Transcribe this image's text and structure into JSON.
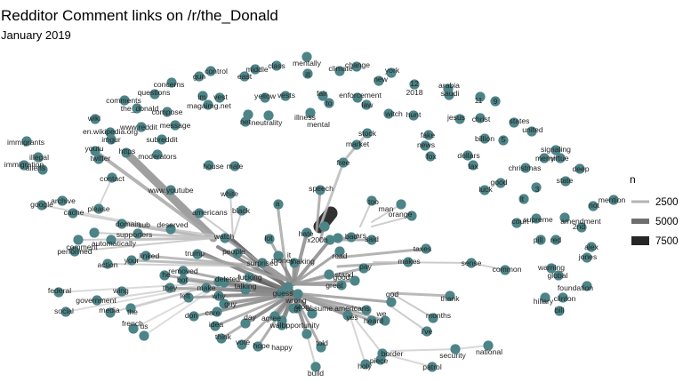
{
  "chart_data": {
    "type": "network",
    "title": "Redditor Comment links on /r/the_Donald",
    "subtitle": "January 2019",
    "legend": {
      "title": "n",
      "position": "right",
      "entries": [
        {
          "label": "2500",
          "value": 2500,
          "color": "#b3b3b3"
        },
        {
          "label": "5000",
          "value": 5000,
          "color": "#6e6e6e"
        },
        {
          "label": "7500",
          "value": 7500,
          "color": "#262626"
        }
      ]
    },
    "node_color": "#4d8487",
    "nodes": [
      "control",
      "middle",
      "class",
      "mentally",
      "climate",
      "change",
      "york",
      "concerns",
      "gun",
      "east",
      "ill",
      "new",
      "2018",
      "arabia",
      "questions",
      "im",
      "vest",
      "yellow",
      "vests",
      "fair",
      "enforcement",
      "saudi",
      "comments",
      "magaimg.net",
      "to",
      "law",
      "11",
      "9",
      "the_donald",
      "compose",
      "neutrality",
      "illness",
      "mental",
      "witch",
      "hunt",
      "jesus",
      "christ",
      "states",
      "wiki",
      "en.wikipedia.org",
      "www.reddit",
      "message",
      "net",
      "united",
      "imgur",
      "subreddit",
      "stock",
      "fake",
      "billion",
      "5",
      "immigrants",
      "youtu",
      "https",
      "moderators",
      "market",
      "news",
      "fox",
      "signaling",
      "illegal",
      "twitter",
      "house",
      "male",
      "dollars",
      "merry",
      "virtue",
      "immigration",
      "aliens",
      "free",
      "tax",
      "christmas",
      "deep",
      "contact",
      "state",
      "speech",
      "good",
      "www.youtube",
      "white",
      "luck",
      "lt",
      "3",
      "google",
      "archive",
      "cache",
      "please",
      "americans",
      "black",
      "a",
      "too",
      "mention",
      "not",
      "amendment",
      "2nd",
      "domain",
      "supreme",
      "court",
      "sub",
      "deserved",
      "supporters",
      "orange",
      "man",
      "bad",
      "ars",
      "said",
      "pill",
      "red",
      "comment",
      "automatically",
      "performed",
      "taxes",
      "alex",
      "jones",
      "hate",
      "x200b",
      "watch",
      "trump",
      "people",
      "lot",
      "it",
      "read",
      "your",
      "action",
      "linked",
      "makes",
      "sense",
      "common",
      "removed",
      "he",
      "pay",
      "warning",
      "global",
      "surprised",
      "money",
      "making",
      "stand",
      "foundation",
      "federal",
      "bot",
      "they",
      "left",
      "deleted",
      "fucking",
      "talking",
      "make",
      "why",
      "great",
      "good",
      "wing",
      "care",
      "clinton",
      "hillary",
      "government",
      "guy",
      "guess",
      "thank",
      "media",
      "social",
      "god",
      "bill",
      "the",
      "don",
      "story",
      "wrong",
      "gt",
      "agree",
      "americans",
      "we",
      "months",
      "french",
      "us",
      "idea",
      "day",
      "assume",
      "yes",
      "heard",
      "i've",
      "think",
      "wall",
      "opportunity",
      "happy",
      "vote",
      "hope",
      "told",
      "border",
      "security",
      "national",
      "build",
      "holy",
      "piece",
      "patrol"
    ]
  }
}
